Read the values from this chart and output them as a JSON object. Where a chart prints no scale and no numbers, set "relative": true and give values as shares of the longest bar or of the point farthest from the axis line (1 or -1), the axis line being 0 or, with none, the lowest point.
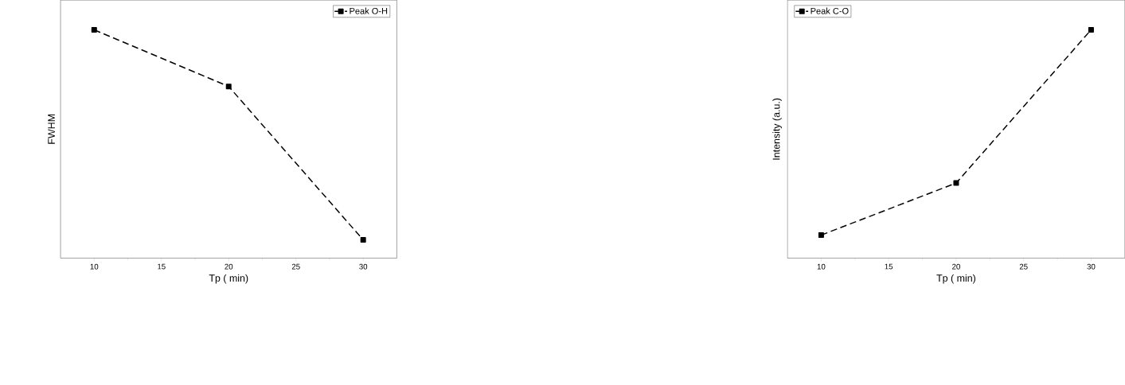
{
  "chart_data": [
    {
      "type": "line",
      "relative": true,
      "xlabel": "Tp ( min)",
      "ylabel": "FWHM",
      "x": [
        10,
        20,
        30
      ],
      "xlim": [
        7.5,
        32.5
      ],
      "xticks": [
        10,
        15,
        20,
        25,
        30
      ],
      "legend": "top right",
      "marker": "square",
      "line_style": "dashed",
      "grid": false,
      "series": [
        {
          "name": "Peak O-H",
          "color": "#000000",
          "values": [
            1,
            0.752,
            0.08
          ]
        }
      ]
    },
    {
      "type": "line",
      "relative": true,
      "xlabel": "Tp ( min)",
      "ylabel": "Intensity (a.u.)",
      "x": [
        10,
        20,
        30
      ],
      "xlim": [
        7.5,
        32.5
      ],
      "xticks": [
        10,
        15,
        20,
        25,
        30
      ],
      "legend": "top left",
      "marker": "square",
      "line_style": "dashed",
      "grid": false,
      "series": [
        {
          "name": "Peak C-O",
          "color": "#000000",
          "values": [
            0.101,
            0.329,
            1
          ]
        }
      ]
    }
  ]
}
